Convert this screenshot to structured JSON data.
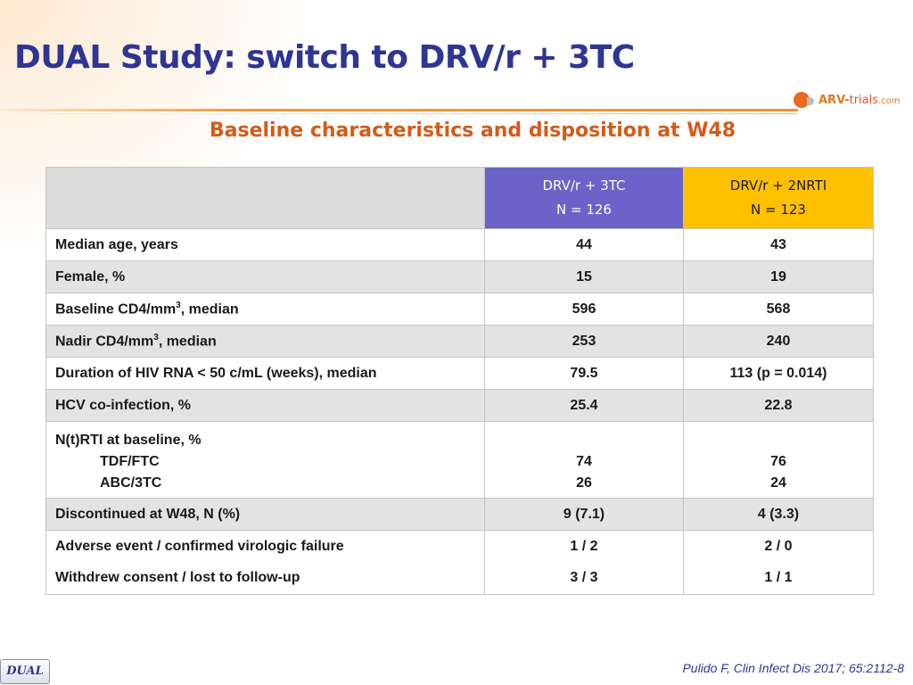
{
  "slide": {
    "title": "DUAL Study: switch to DRV/r + 3TC",
    "subtitle": "Baseline characteristics and disposition at W48",
    "logo": {
      "arv": "ARV-",
      "trials": "trials",
      "com": ".com"
    },
    "citation": "Pulido F, Clin Infect Dis 2017; 65:2112-8",
    "badge": "DUAL"
  },
  "table": {
    "columns": [
      {
        "line1": "DRV/r + 3TC",
        "line2": "N = 126",
        "color": "#6b63c7"
      },
      {
        "line1": "DRV/r + 2NRTI",
        "line2": "N = 123",
        "color": "#ffc000"
      }
    ],
    "rows": {
      "median_age": {
        "label": "Median age, years",
        "a": "44",
        "b": "43"
      },
      "female": {
        "label": "Female, %",
        "a": "15",
        "b": "19"
      },
      "baseline_cd4": {
        "label_pre": "Baseline CD4/mm",
        "label_sup": "3",
        "label_post": ", median",
        "a": "596",
        "b": "568"
      },
      "nadir_cd4": {
        "label_pre": "Nadir CD4/mm",
        "label_sup": "3",
        "label_post": ", median",
        "a": "253",
        "b": "240"
      },
      "duration_rna": {
        "label": "Duration of HIV RNA < 50 c/mL (weeks), median",
        "a": "79.5",
        "b": "113 (p = 0.014)"
      },
      "hcv": {
        "label": "HCV co-infection, %",
        "a": "25.4",
        "b": "22.8"
      },
      "nrti": {
        "label": "N(t)RTI at baseline, %",
        "sub1_label": "TDF/FTC",
        "sub1_a": "74",
        "sub1_b": "76",
        "sub2_label": "ABC/3TC",
        "sub2_a": "26",
        "sub2_b": "24"
      },
      "discontinued": {
        "label": "Discontinued at W48, N (%)",
        "a": "9 (7.1)",
        "b": "4 (3.3)"
      },
      "adverse": {
        "label": "Adverse event / confirmed virologic failure",
        "a": "1 / 2",
        "b": "2 / 0"
      },
      "withdrew": {
        "label": "Withdrew consent / lost to follow-up",
        "a": "3 / 3",
        "b": "1 / 1"
      }
    }
  }
}
